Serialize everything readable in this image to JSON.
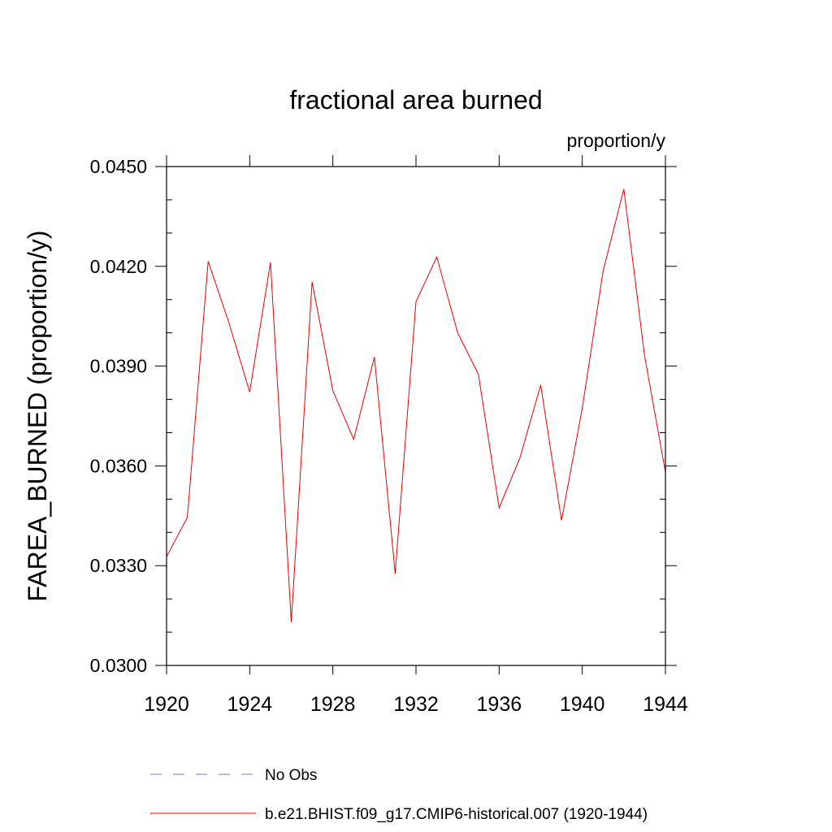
{
  "chart_data": {
    "type": "line",
    "title": "fractional area burned",
    "units": "proportion/y",
    "xlabel": "",
    "ylabel": "FAREA_BURNED  (proportion/y)",
    "xlim": [
      1920,
      1944
    ],
    "ylim": [
      0.03,
      0.045
    ],
    "x_ticks": [
      "1920",
      "1924",
      "1928",
      "1932",
      "1936",
      "1940",
      "1944"
    ],
    "y_ticks": [
      "0.0300",
      "0.0330",
      "0.0360",
      "0.0390",
      "0.0420",
      "0.0450"
    ],
    "x": [
      1920,
      1921,
      1922,
      1923,
      1924,
      1925,
      1926,
      1927,
      1928,
      1929,
      1930,
      1931,
      1932,
      1933,
      1934,
      1935,
      1936,
      1937,
      1938,
      1939,
      1940,
      1941,
      1942,
      1943,
      1944
    ],
    "series": [
      {
        "name": "b.e21.BHIST.f09_g17.CMIP6-historical.007 (1920-1944)",
        "color": "#e60000",
        "values": [
          0.03327,
          0.03445,
          0.04215,
          0.0403,
          0.03822,
          0.04212,
          0.0313,
          0.04153,
          0.03826,
          0.0368,
          0.03927,
          0.03276,
          0.04094,
          0.04228,
          0.04001,
          0.03875,
          0.03474,
          0.03624,
          0.03843,
          0.03436,
          0.03774,
          0.04186,
          0.04432,
          0.0393,
          0.03581
        ]
      }
    ],
    "legend": {
      "placement": "bottom",
      "entries": [
        {
          "label": "No Obs",
          "style": "dashed",
          "color": "#7a7abf"
        },
        {
          "label": "b.e21.BHIST.f09_g17.CMIP6-historical.007 (1920-1944)",
          "style": "solid",
          "color": "#e60000"
        }
      ]
    }
  }
}
